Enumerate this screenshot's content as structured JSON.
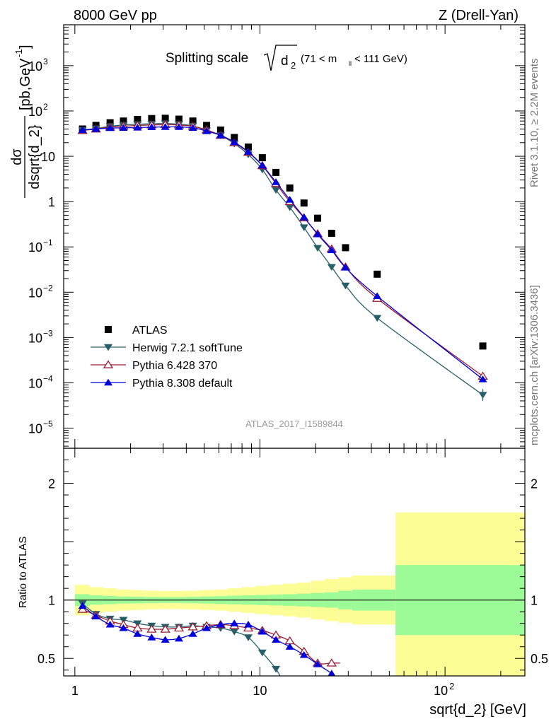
{
  "header": {
    "left": "8000 GeV pp",
    "right": "Z (Drell-Yan)"
  },
  "side_labels": {
    "rivet": "Rivet 3.1.10, ≥ 2.2M events",
    "mcplots": "mcplots.cern.ch [arXiv:1306.3436]"
  },
  "chart_data": [
    {
      "type": "scatter",
      "title_main": "Splitting scale",
      "title_sqrt": "d",
      "title_sub": "2",
      "title_range_pre": "(71 < m",
      "title_range_sub": "ll",
      "title_range_post": " < 111 GeV)",
      "ylabel_num": "dσ",
      "ylabel_den": "dsqrt{d_2}",
      "ylabel_unit": "[pb,GeV",
      "ylabel_unit_exp": "-1",
      "ylabel_unit_end": "]",
      "x_scale": "log",
      "y_scale": "log",
      "xlim": [
        0.87,
        270
      ],
      "ylim": [
        3.6e-06,
        8000.0
      ],
      "y_ticks": [
        {
          "v": 1000.0,
          "base": "10",
          "exp": "3"
        },
        {
          "v": 100.0,
          "base": "10",
          "exp": "2"
        },
        {
          "v": 10,
          "base": "10",
          "exp": ""
        },
        {
          "v": 1,
          "base": "1",
          "exp": ""
        },
        {
          "v": 0.1,
          "base": "10",
          "exp": "−1"
        },
        {
          "v": 0.01,
          "base": "10",
          "exp": "−2"
        },
        {
          "v": 0.001,
          "base": "10",
          "exp": "−3"
        },
        {
          "v": 0.0001,
          "base": "10",
          "exp": "−4"
        },
        {
          "v": 1e-05,
          "base": "10",
          "exp": "−5"
        }
      ],
      "watermark": "ATLAS_2017_I1589844",
      "legend_position": "bottom-left",
      "x": [
        1.1,
        1.3,
        1.55,
        1.83,
        2.18,
        2.6,
        3.08,
        3.65,
        4.34,
        5.15,
        6.13,
        7.27,
        8.65,
        10.3,
        12.2,
        14.5,
        17.3,
        20.5,
        24.4,
        29.0,
        43.0,
        160
      ],
      "series": [
        {
          "name": "ATLAS",
          "color": "#000000",
          "marker": "square",
          "values": [
            40,
            48,
            55,
            60,
            65,
            68,
            69,
            66,
            60,
            48,
            38,
            26,
            16,
            9.3,
            4.4,
            2.0,
            0.93,
            0.43,
            0.2,
            0.096,
            0.025,
            0.00065
          ]
        },
        {
          "name": "Herwig 7.2.1 softTune",
          "color": "#275f69",
          "marker": "triangle-down",
          "values": [
            38,
            41,
            46,
            49,
            51,
            52,
            53,
            51,
            47,
            37,
            29,
            19,
            11,
            5.1,
            1.8,
            0.75,
            0.27,
            0.095,
            0.036,
            0.014,
            0.0027,
            5.4e-05
          ]
        },
        {
          "name": "Pythia 6.428 370",
          "color": "#9b1b30",
          "marker": "triangle-up-open",
          "values": [
            37,
            40,
            44,
            46,
            48,
            49,
            50,
            49,
            46,
            38,
            29,
            20,
            12.2,
            6.2,
            2.5,
            1.0,
            0.44,
            0.195,
            0.09,
            0.036,
            0.0073,
            0.00014
          ]
        },
        {
          "name": "Pythia 8.308 default",
          "color": "#0000dd",
          "marker": "triangle-up",
          "values": [
            38,
            40,
            42,
            42.5,
            43,
            44,
            44.5,
            44.5,
            42.5,
            36,
            29,
            20.5,
            12.5,
            6.3,
            2.7,
            1.1,
            0.45,
            0.19,
            0.085,
            0.035,
            0.0082,
            0.00012
          ]
        }
      ]
    },
    {
      "type": "line",
      "ylabel": "Ratio to ATLAS",
      "xlabel": "sqrt{d_2} [GeV]",
      "x_scale": "log",
      "xlim": [
        0.87,
        270
      ],
      "ylim": [
        0.35,
        2.3
      ],
      "x_tick_labels": [
        {
          "v": 1,
          "base": "1",
          "exp": ""
        },
        {
          "v": 10,
          "base": "10",
          "exp": ""
        },
        {
          "v": 100,
          "base": "10",
          "exp": "2"
        }
      ],
      "y_tick_labels": [
        {
          "v": 2,
          "label": "2"
        },
        {
          "v": 1,
          "label": "1"
        },
        {
          "v": 0.5,
          "label": "0.5"
        }
      ],
      "band_edges": [
        1.0,
        1.2,
        1.42,
        1.68,
        2.0,
        2.38,
        2.83,
        3.36,
        4.0,
        4.75,
        5.65,
        6.7,
        7.95,
        9.45,
        11.2,
        13.3,
        15.8,
        18.8,
        22.3,
        26.5,
        31.5,
        54,
        270
      ],
      "band_stat_half": [
        0.05,
        0.04,
        0.035,
        0.03,
        0.028,
        0.026,
        0.025,
        0.025,
        0.027,
        0.03,
        0.033,
        0.037,
        0.04,
        0.043,
        0.047,
        0.05,
        0.055,
        0.06,
        0.065,
        0.08,
        0.09,
        0.3
      ],
      "band_syst_half": [
        0.13,
        0.11,
        0.1,
        0.09,
        0.085,
        0.08,
        0.078,
        0.078,
        0.08,
        0.085,
        0.09,
        0.1,
        0.11,
        0.12,
        0.13,
        0.14,
        0.15,
        0.165,
        0.18,
        0.195,
        0.21,
        0.75
      ],
      "band_colors": {
        "stat": "#9cfb96",
        "syst": "#fdfd96"
      },
      "series": [
        {
          "name": "Herwig 7.2.1 softTune",
          "color": "#275f69",
          "marker": "triangle-down",
          "x": [
            1.1,
            1.3,
            1.55,
            1.83,
            2.18,
            2.6,
            3.08,
            3.65,
            4.34,
            5.15,
            6.13,
            7.27,
            8.65,
            10.3,
            12.2
          ],
          "values": [
            0.97,
            0.88,
            0.84,
            0.83,
            0.8,
            0.78,
            0.77,
            0.77,
            0.78,
            0.77,
            0.76,
            0.73,
            0.68,
            0.55,
            0.41
          ]
        },
        {
          "name": "Pythia 6.428 370",
          "color": "#9b1b30",
          "marker": "triangle-up-open",
          "x": [
            1.1,
            1.3,
            1.55,
            1.83,
            2.18,
            2.6,
            3.08,
            3.65,
            4.34,
            5.15,
            6.13,
            7.27,
            8.65,
            10.3,
            12.2,
            14.5,
            17.3,
            20.5,
            24.4
          ],
          "values": [
            0.92,
            0.87,
            0.82,
            0.79,
            0.76,
            0.75,
            0.75,
            0.76,
            0.77,
            0.78,
            0.79,
            0.78,
            0.76,
            0.74,
            0.7,
            0.65,
            0.56,
            0.46,
            0.46
          ]
        },
        {
          "name": "Pythia 8.308 default",
          "color": "#0000dd",
          "marker": "triangle-up",
          "x": [
            1.1,
            1.3,
            1.55,
            1.83,
            2.18,
            2.6,
            3.08,
            3.65,
            4.34,
            5.15,
            6.13,
            7.27,
            8.65,
            10.3,
            12.2,
            14.5,
            17.3,
            20.5,
            24.4
          ],
          "values": [
            0.95,
            0.86,
            0.79,
            0.76,
            0.71,
            0.68,
            0.66,
            0.67,
            0.71,
            0.76,
            0.79,
            0.8,
            0.79,
            0.73,
            0.66,
            0.6,
            0.53,
            0.45,
            0.37
          ]
        }
      ]
    }
  ]
}
